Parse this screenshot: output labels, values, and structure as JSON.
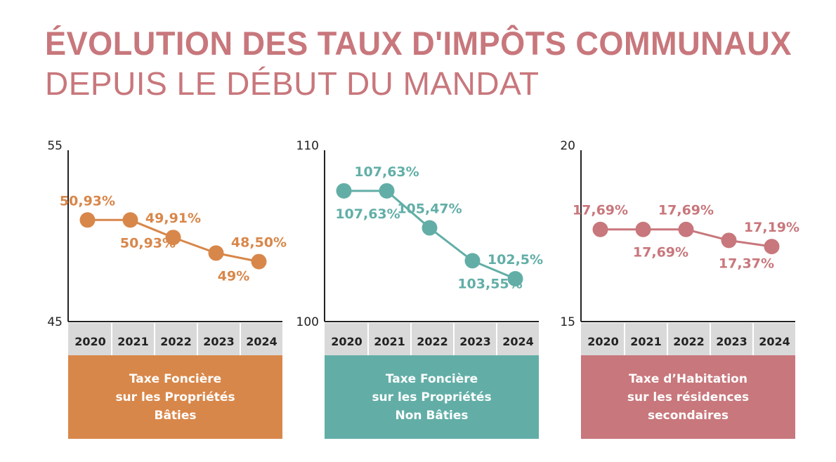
{
  "title": {
    "line1": "ÉVOLUTION DES TAUX D'IMPÔTS COMMUNAUX",
    "line2": "DEPUIS LE DÉBUT DU MANDAT"
  },
  "colors": {
    "title": "#c8777c",
    "axis": "#222222",
    "year_bg": "#d9d9d9"
  },
  "chart_data": [
    {
      "type": "line",
      "title": "Taxe Foncière\nsur les Propriétés\nBâties",
      "color": "#d8874a",
      "categories": [
        "2020",
        "2021",
        "2022",
        "2023",
        "2024"
      ],
      "values": [
        50.93,
        50.93,
        49.91,
        49.0,
        48.5
      ],
      "labels": [
        "50,93%",
        "50,93%",
        "49,91%",
        "49%",
        "48,50%"
      ],
      "label_pos": [
        "above",
        "below",
        "above",
        "below",
        "above"
      ],
      "ylim": [
        45,
        55
      ],
      "yticks": [
        "45",
        "55"
      ],
      "xlabel": "",
      "ylabel": "",
      "grid": false
    },
    {
      "type": "line",
      "title": "Taxe Foncière\nsur les Propriétés\nNon Bâties",
      "color": "#62aea7",
      "categories": [
        "2020",
        "2021",
        "2022",
        "2023",
        "2024"
      ],
      "values": [
        107.63,
        107.63,
        105.47,
        103.55,
        102.5
      ],
      "labels": [
        "107,63%",
        "107,63%",
        "105,47%",
        "103,55%",
        "102,5%"
      ],
      "label_pos": [
        "below",
        "above",
        "above",
        "below",
        "above"
      ],
      "ylim": [
        100,
        110
      ],
      "yticks": [
        "100",
        "110"
      ],
      "xlabel": "",
      "ylabel": "",
      "grid": false
    },
    {
      "type": "line",
      "title": "Taxe d’Habitation\nsur les résidences\nsecondaires",
      "color": "#c8777c",
      "categories": [
        "2020",
        "2021",
        "2022",
        "2023",
        "2024"
      ],
      "values": [
        17.69,
        17.69,
        17.69,
        17.37,
        17.19
      ],
      "labels": [
        "17,69%",
        "17,69%",
        "17,69%",
        "17,37%",
        "17,19%"
      ],
      "label_pos": [
        "above",
        "below",
        "above",
        "below",
        "above"
      ],
      "ylim": [
        15,
        20
      ],
      "yticks": [
        "15",
        "20"
      ],
      "xlabel": "",
      "ylabel": "",
      "grid": false
    }
  ]
}
